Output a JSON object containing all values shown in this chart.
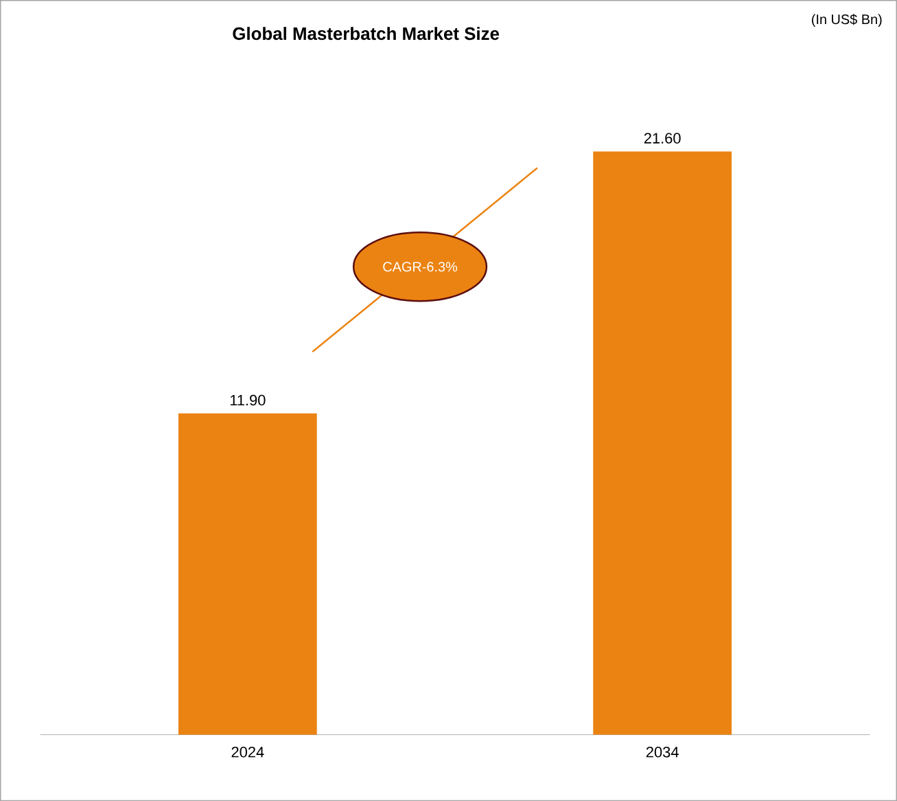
{
  "chart_data": {
    "type": "bar",
    "title": "Global Masterbatch Market Size",
    "categories": [
      "2024",
      "2034"
    ],
    "values": [
      11.9,
      21.6
    ],
    "value_labels": [
      "11.90",
      "21.60"
    ],
    "color": "#eb8312",
    "annotations": [
      "(In US$ Bn)",
      "CAGR-6.3%"
    ]
  }
}
